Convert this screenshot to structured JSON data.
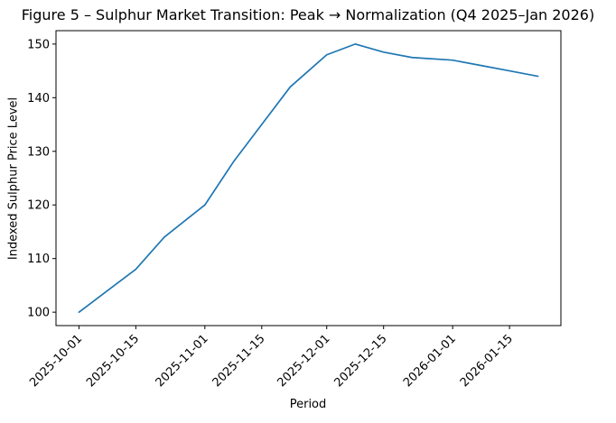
{
  "chart_data": {
    "type": "line",
    "title": "Figure 5 – Sulphur Market Transition: Peak → Normalization (Q4 2025–Jan 2026)",
    "xlabel": "Period",
    "ylabel": "Indexed Sulphur Price Level",
    "grid": false,
    "legend": "none",
    "x_tick_labels": [
      "2025-10-01",
      "2025-10-15",
      "2025-11-01",
      "2025-11-15",
      "2025-12-01",
      "2025-12-15",
      "2026-01-01",
      "2026-01-15"
    ],
    "x_tick_days": [
      0,
      14,
      31,
      45,
      61,
      75,
      92,
      106
    ],
    "y_ticks": [
      100,
      110,
      120,
      130,
      140,
      150
    ],
    "xlim_days": [
      -5.65,
      118.65
    ],
    "ylim": [
      97.5,
      152.5
    ],
    "series": [
      {
        "name": "Indexed Sulphur Price Level",
        "color": "#1f77b4",
        "dates": [
          "2025-10-01",
          "2025-10-08",
          "2025-10-15",
          "2025-10-22",
          "2025-11-01",
          "2025-11-08",
          "2025-11-15",
          "2025-11-22",
          "2025-12-01",
          "2025-12-08",
          "2025-12-15",
          "2025-12-22",
          "2026-01-01",
          "2026-01-08",
          "2026-01-15",
          "2026-01-22"
        ],
        "x_days": [
          0,
          7,
          14,
          21,
          31,
          38,
          45,
          52,
          61,
          68,
          75,
          82,
          92,
          99,
          106,
          113
        ],
        "values": [
          100,
          104,
          108,
          114,
          120,
          128,
          135,
          142,
          148,
          150,
          148.5,
          147.5,
          147,
          146,
          145,
          144
        ]
      }
    ]
  }
}
